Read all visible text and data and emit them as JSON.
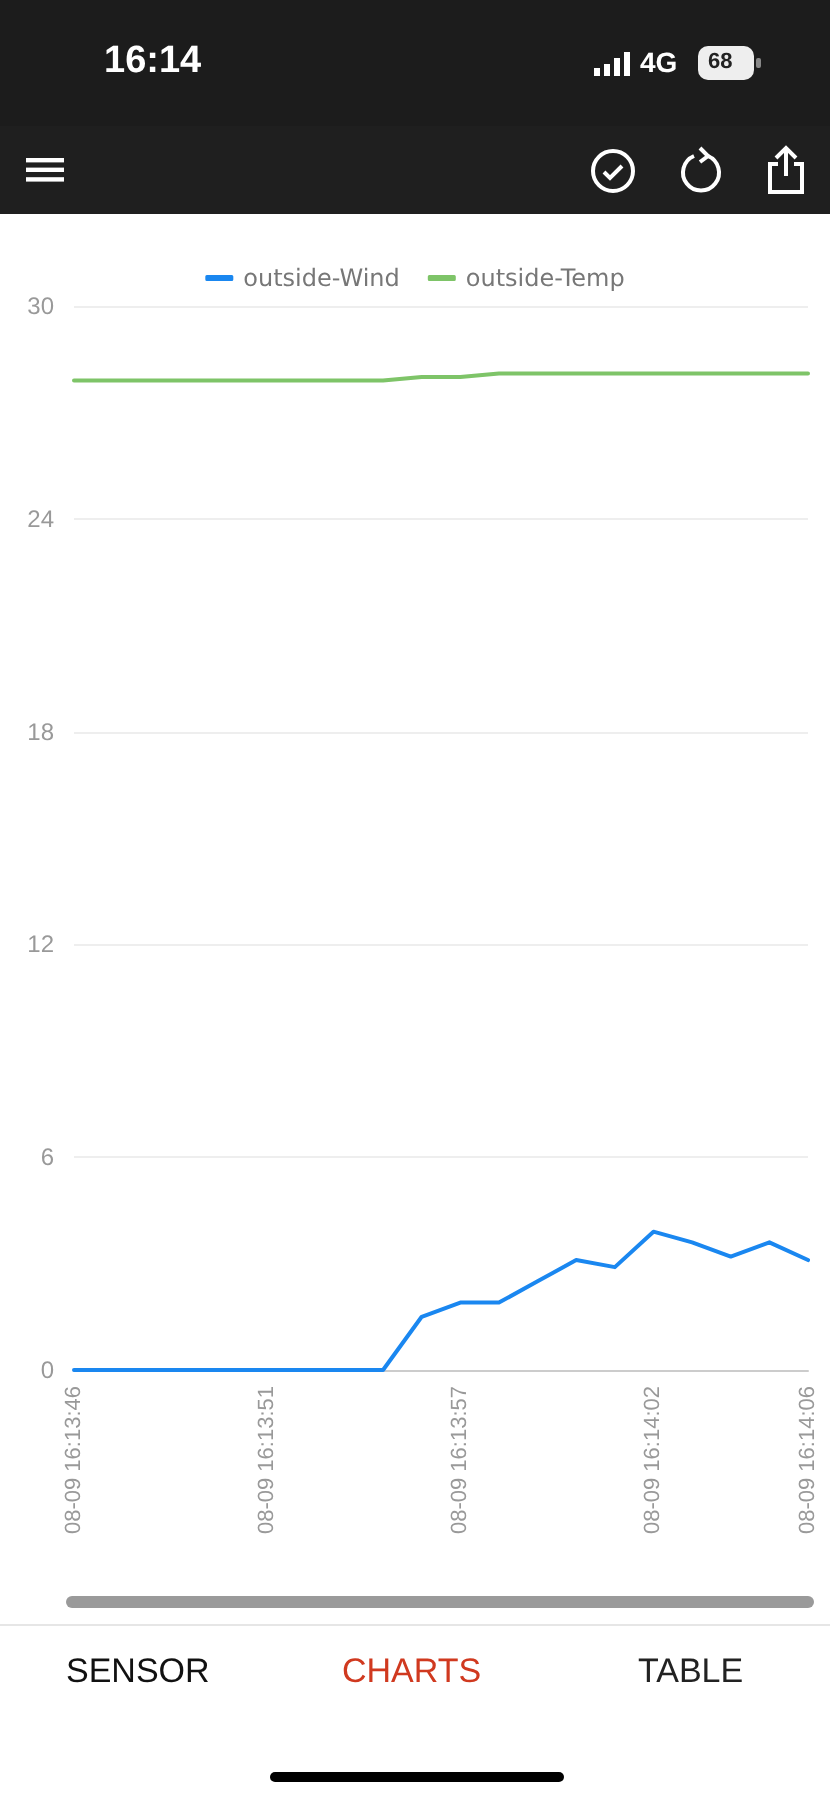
{
  "chart_data": {
    "type": "line",
    "categories": [
      "08-09 16:13:46",
      null,
      null,
      null,
      null,
      "08-09 16:13:51",
      null,
      null,
      null,
      null,
      "08-09 16:13:57",
      null,
      null,
      null,
      null,
      "08-09 16:14:02",
      null,
      null,
      null,
      "08-09 16:14:06"
    ],
    "series": [
      {
        "name": "outside-Wind",
        "color": "#1a87f0",
        "values": [
          0,
          0,
          0,
          0,
          0,
          0,
          0,
          0,
          0,
          1.5,
          1.9,
          1.9,
          2.5,
          3.1,
          2.9,
          3.9,
          3.6,
          3.2,
          3.6,
          3.1
        ]
      },
      {
        "name": "outside-Temp",
        "color": "#7ec468",
        "values": [
          27.9,
          27.9,
          27.9,
          27.9,
          27.9,
          27.9,
          27.9,
          27.9,
          27.9,
          28.0,
          28.0,
          28.1,
          28.1,
          28.1,
          28.1,
          28.1,
          28.1,
          28.1,
          28.1,
          28.1
        ]
      }
    ],
    "ylim": [
      0,
      30
    ],
    "yticks": [
      0,
      6,
      12,
      18,
      24,
      30
    ],
    "grid": "y",
    "legend": "top",
    "marker": "none",
    "line_style": "solid",
    "annotations": [
      "16:14",
      "4G",
      "68",
      "SENSOR",
      "CHARTS",
      "TABLE"
    ]
  }
}
